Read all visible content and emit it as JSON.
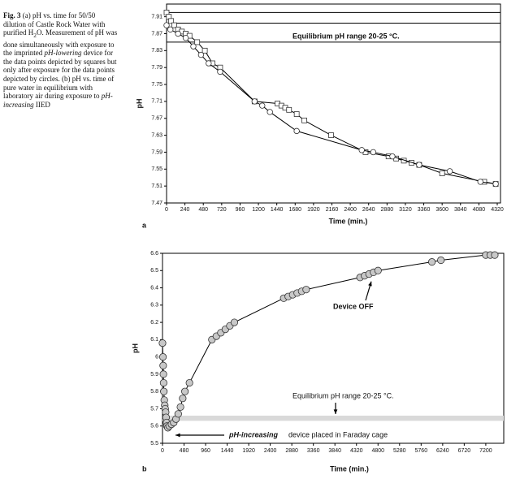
{
  "caption": [
    "Fig. 3",
    " (a) pH vs. time for 50/50 dilution of Castle Rock Water with purified H",
    "2",
    "O. Measurement of pH was done simultaneously with exposure to the imprinted ",
    "pH-lowering",
    " device for the data points depicted by squares but only after exposure for the data points depicted by circles. (b) pH vs. time of pure water in equilibrium with laboratory air during exposure to ",
    "pH-increasing",
    " IIED"
  ],
  "chart_data": [
    {
      "type": "line",
      "panel": "a",
      "x_label": "Time (min.)",
      "y_label": "pH",
      "xlim": [
        0,
        4320
      ],
      "xticks": [
        0,
        240,
        480,
        720,
        960,
        1200,
        1440,
        1680,
        1920,
        2160,
        2400,
        2640,
        2880,
        3120,
        3360,
        3600,
        3840,
        4080,
        4320
      ],
      "ylim": [
        7.47,
        7.94
      ],
      "yticks": [
        7.47,
        7.51,
        7.55,
        7.59,
        7.63,
        7.67,
        7.71,
        7.75,
        7.79,
        7.83,
        7.87,
        7.91
      ],
      "hlines": [
        7.92,
        7.895,
        7.85
      ],
      "annotations": [
        "Equilibrium pH range 20-25 °C."
      ],
      "series": [
        {
          "marker": "square",
          "color": "#333333",
          "x": [
            0,
            30,
            60,
            100,
            150,
            200,
            250,
            300,
            400,
            500,
            600,
            700,
            1150,
            1450,
            1500,
            1550,
            1600,
            1700,
            1800,
            2150,
            2600,
            2900,
            3000,
            3100,
            3200,
            3300,
            3600,
            4150,
            4300
          ],
          "values": [
            7.92,
            7.91,
            7.9,
            7.89,
            7.88,
            7.875,
            7.87,
            7.865,
            7.85,
            7.83,
            7.8,
            7.79,
            7.71,
            7.705,
            7.7,
            7.695,
            7.69,
            7.68,
            7.665,
            7.63,
            7.59,
            7.58,
            7.575,
            7.57,
            7.565,
            7.56,
            7.54,
            7.52,
            7.515
          ]
        },
        {
          "marker": "circle",
          "color": "#333333",
          "x": [
            0,
            50,
            150,
            250,
            350,
            450,
            550,
            700,
            1150,
            1250,
            1350,
            1700,
            2550,
            2700,
            2950,
            3300,
            3700,
            4100,
            4300
          ],
          "values": [
            7.89,
            7.88,
            7.87,
            7.86,
            7.84,
            7.82,
            7.8,
            7.78,
            7.71,
            7.7,
            7.685,
            7.64,
            7.595,
            7.59,
            7.58,
            7.56,
            7.545,
            7.52,
            7.515
          ]
        }
      ]
    },
    {
      "type": "line",
      "panel": "b",
      "x_label": "Time (min.)",
      "y_label": "pH",
      "xlim": [
        0,
        7600
      ],
      "xticks": [
        0,
        480,
        960,
        1440,
        1920,
        2400,
        2880,
        3360,
        3840,
        4320,
        4800,
        5280,
        5760,
        6240,
        6720,
        7200
      ],
      "ylim": [
        5.5,
        6.6
      ],
      "yticks": [
        5.5,
        5.6,
        5.7,
        5.8,
        5.9,
        6,
        6.1,
        6.2,
        6.3,
        6.4,
        6.5,
        6.6
      ],
      "band": [
        5.63,
        5.66
      ],
      "annotations": [
        "Device OFF",
        "Equilibrium pH range 20-25 °C.",
        "pH-increasing",
        "device placed in Faraday cage"
      ],
      "series": [
        {
          "marker": "circle",
          "color": "#c8c8c8",
          "x": [
            0,
            10,
            15,
            20,
            25,
            30,
            40,
            50,
            60,
            70,
            80,
            90,
            100,
            120,
            150,
            200,
            250,
            300,
            350,
            400,
            450,
            500,
            600,
            1100,
            1200,
            1300,
            1400,
            1500,
            1600,
            2700,
            2800,
            2900,
            3000,
            3100,
            3200,
            4400,
            4500,
            4600,
            4700,
            4800,
            6000,
            6200,
            7200,
            7300,
            7400
          ],
          "values": [
            6.08,
            6.0,
            5.95,
            5.9,
            5.85,
            5.8,
            5.75,
            5.72,
            5.7,
            5.68,
            5.65,
            5.62,
            5.6,
            5.59,
            5.6,
            5.61,
            5.62,
            5.64,
            5.67,
            5.71,
            5.76,
            5.8,
            5.85,
            6.1,
            6.12,
            6.14,
            6.16,
            6.18,
            6.2,
            6.34,
            6.35,
            6.36,
            6.37,
            6.38,
            6.39,
            6.46,
            6.47,
            6.48,
            6.49,
            6.5,
            6.55,
            6.56,
            6.59,
            6.59,
            6.59
          ]
        }
      ]
    }
  ]
}
